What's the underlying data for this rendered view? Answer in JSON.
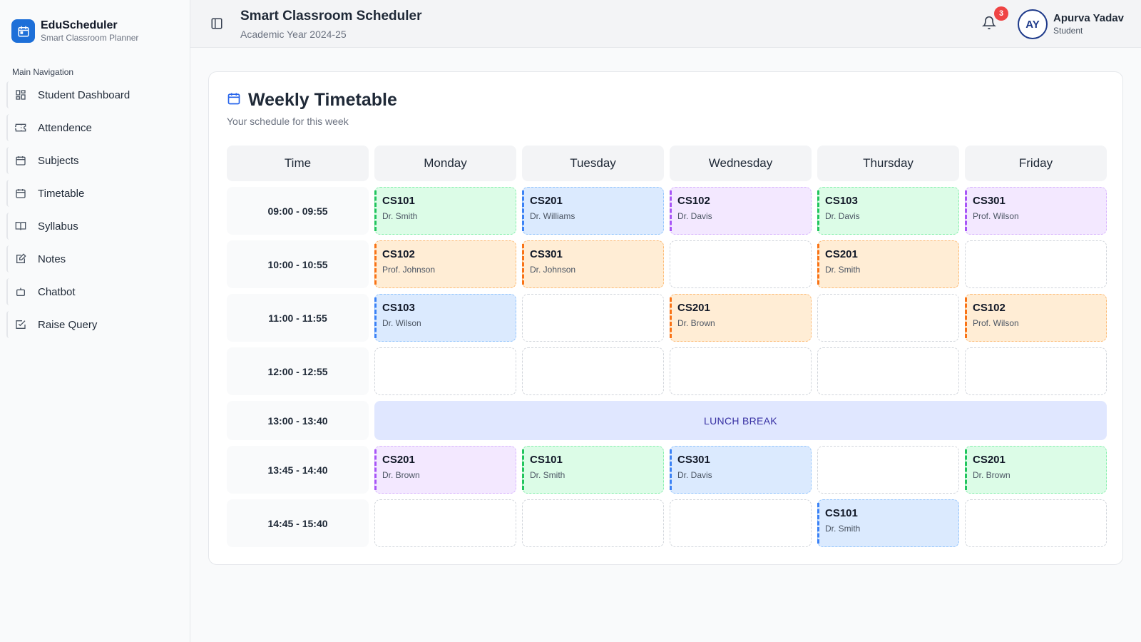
{
  "brand": {
    "name": "EduScheduler",
    "subtitle": "Smart Classroom Planner",
    "color": "#1d6fd8"
  },
  "sidebar": {
    "section_title": "Main Navigation",
    "items": [
      {
        "label": "Student Dashboard",
        "icon": "dashboard-icon"
      },
      {
        "label": "Attendence",
        "icon": "ticket-icon"
      },
      {
        "label": "Subjects",
        "icon": "calendar-icon"
      },
      {
        "label": "Timetable",
        "icon": "calendar-icon"
      },
      {
        "label": "Syllabus",
        "icon": "book-icon"
      },
      {
        "label": "Notes",
        "icon": "edit-note-icon"
      },
      {
        "label": "Chatbot",
        "icon": "bot-icon"
      },
      {
        "label": "Raise Query",
        "icon": "checkbox-icon"
      }
    ]
  },
  "header": {
    "title": "Smart Classroom Scheduler",
    "subtitle": "Academic Year 2024-25",
    "notification_count": "3",
    "user": {
      "initials": "AY",
      "name": "Apurva Yadav",
      "role": "Student"
    }
  },
  "timetable": {
    "title": "Weekly Timetable",
    "subtitle": "Your schedule for this week",
    "time_header": "Time",
    "days": [
      "Monday",
      "Tuesday",
      "Wednesday",
      "Thursday",
      "Friday"
    ],
    "lunch_label": "LUNCH BREAK",
    "rows": [
      {
        "time": "09:00 - 09:55",
        "slots": [
          {
            "code": "CS101",
            "prof": "Dr. Smith",
            "color": "green"
          },
          {
            "code": "CS201",
            "prof": "Dr. Williams",
            "color": "blue"
          },
          {
            "code": "CS102",
            "prof": "Dr. Davis",
            "color": "purple"
          },
          {
            "code": "CS103",
            "prof": "Dr. Davis",
            "color": "green"
          },
          {
            "code": "CS301",
            "prof": "Prof. Wilson",
            "color": "purple"
          }
        ]
      },
      {
        "time": "10:00 - 10:55",
        "slots": [
          {
            "code": "CS102",
            "prof": "Prof. Johnson",
            "color": "orange"
          },
          {
            "code": "CS301",
            "prof": "Dr. Johnson",
            "color": "orange"
          },
          null,
          {
            "code": "CS201",
            "prof": "Dr. Smith",
            "color": "orange"
          },
          null
        ]
      },
      {
        "time": "11:00 - 11:55",
        "slots": [
          {
            "code": "CS103",
            "prof": "Dr. Wilson",
            "color": "blue"
          },
          null,
          {
            "code": "CS201",
            "prof": "Dr. Brown",
            "color": "orange"
          },
          null,
          {
            "code": "CS102",
            "prof": "Prof. Wilson",
            "color": "orange"
          }
        ]
      },
      {
        "time": "12:00 - 12:55",
        "slots": [
          null,
          null,
          null,
          null,
          null
        ]
      },
      {
        "time": "13:00 - 13:40",
        "lunch": true
      },
      {
        "time": "13:45 - 14:40",
        "slots": [
          {
            "code": "CS201",
            "prof": "Dr. Brown",
            "color": "purple"
          },
          {
            "code": "CS101",
            "prof": "Dr. Smith",
            "color": "green"
          },
          {
            "code": "CS301",
            "prof": "Dr. Davis",
            "color": "blue"
          },
          null,
          {
            "code": "CS201",
            "prof": "Dr. Brown",
            "color": "green"
          }
        ]
      },
      {
        "time": "14:45 - 15:40",
        "slots": [
          null,
          null,
          null,
          {
            "code": "CS101",
            "prof": "Dr. Smith",
            "color": "blue"
          },
          null
        ]
      }
    ]
  }
}
